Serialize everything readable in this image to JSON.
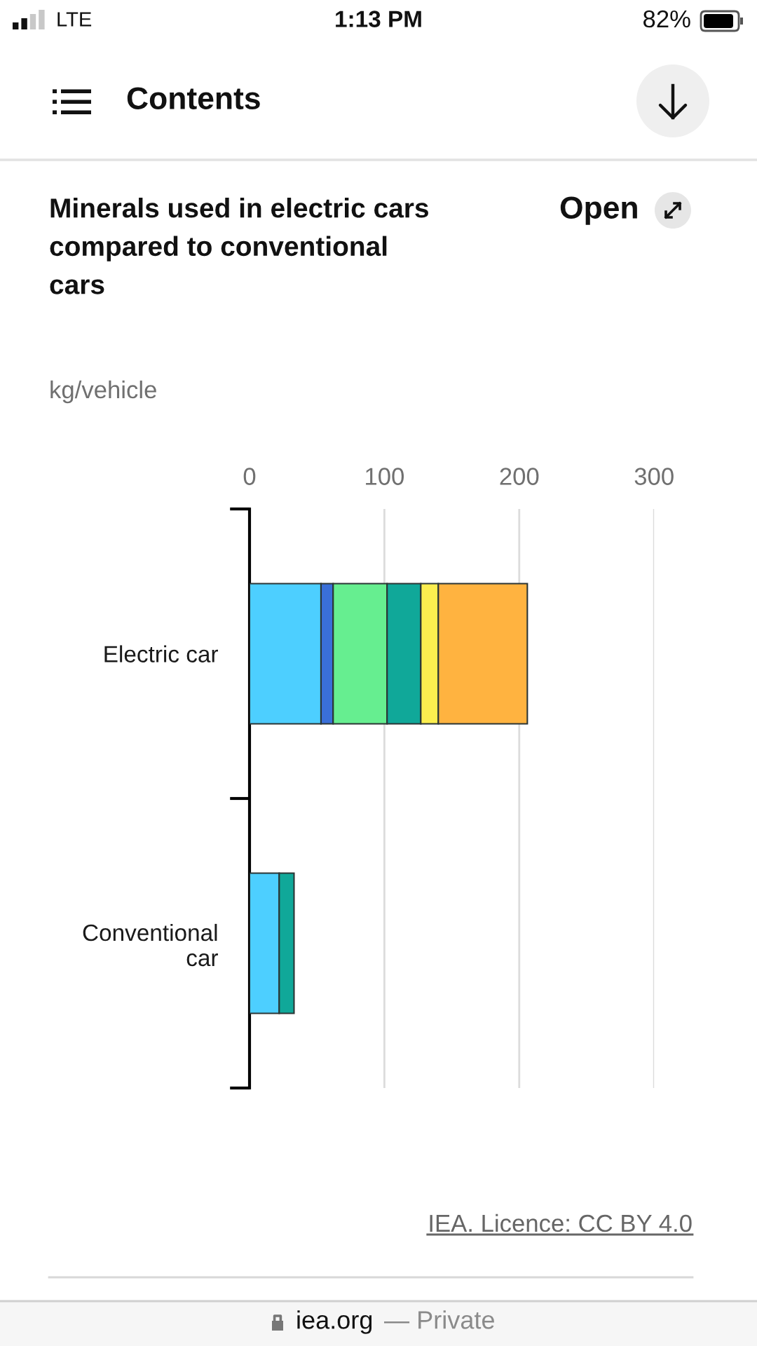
{
  "chart_data": {
    "type": "bar",
    "orientation": "horizontal",
    "stacked": true,
    "title": "Minerals used in electric cars compared to conventional cars",
    "xlabel": "kg/vehicle",
    "categories": [
      "Electric car",
      "Conventional car"
    ],
    "series": [
      {
        "color": "#4dcfff",
        "values": [
          53,
          22
        ]
      },
      {
        "color": "#3a6fd8",
        "values": [
          9,
          null
        ]
      },
      {
        "color": "#66ee90",
        "values": [
          40,
          null
        ]
      },
      {
        "color": "#10a899",
        "values": [
          25,
          11
        ]
      },
      {
        "color": "#fcee4f",
        "values": [
          13,
          null
        ]
      },
      {
        "color": "#ffb340",
        "values": [
          66,
          null
        ]
      }
    ],
    "xlim": [
      0,
      300
    ],
    "xticks": [
      0,
      100,
      200,
      300
    ],
    "grid": "x",
    "annotations": [
      "LTE",
      "1:13 PM",
      "82%",
      "Contents",
      "Open",
      "IEA. Licence: CC BY 4.0",
      "iea.org",
      "— Private"
    ]
  }
}
